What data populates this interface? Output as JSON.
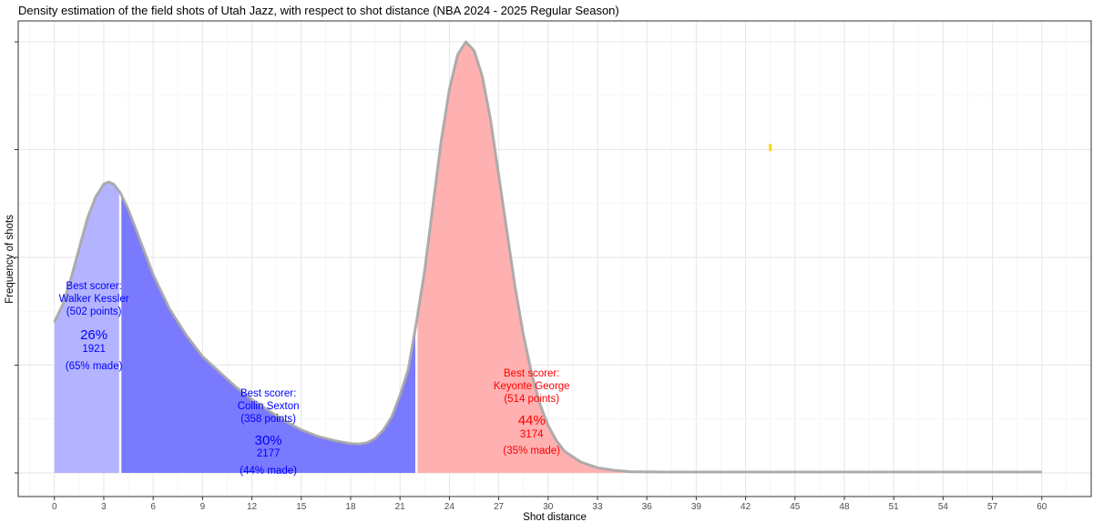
{
  "chart_data": {
    "type": "area",
    "title": "Density estimation of the field shots of Utah Jazz, with respect to shot distance (NBA 2024 - 2025 Regular Season)",
    "xlabel": "Shot distance",
    "ylabel": "Frequency of shots",
    "xlim": [
      -2.2,
      63
    ],
    "x_ticks": [
      0,
      3,
      6,
      9,
      12,
      15,
      18,
      21,
      24,
      27,
      30,
      33,
      36,
      39,
      42,
      45,
      48,
      51,
      54,
      57,
      60
    ],
    "ylim": [
      0,
      1
    ],
    "grid": true,
    "legend": "none",
    "zones": [
      {
        "name": "zone-1",
        "x_range": [
          0,
          4
        ],
        "color": "#b3b3ff",
        "text_color": "#0000ff",
        "label_x": 2.4,
        "best_scorer_heading": "Best scorer:",
        "best_scorer_name": "Walker Kessler",
        "best_scorer_points": "(502 points)",
        "share": "26%",
        "shots": "1921",
        "made": "(65% made)"
      },
      {
        "name": "zone-2",
        "x_range": [
          4,
          22
        ],
        "color": "#7a7aff",
        "text_color": "#0000ff",
        "label_x": 13,
        "best_scorer_heading": "Best scorer:",
        "best_scorer_name": "Collin Sexton",
        "best_scorer_points": "(358 points)",
        "share": "30%",
        "shots": "2177",
        "made": "(44% made)"
      },
      {
        "name": "zone-3",
        "x_range": [
          22,
          60
        ],
        "color": "#ffb0b0",
        "text_color": "#ff0000",
        "label_x": 29,
        "best_scorer_heading": "Best scorer:",
        "best_scorer_name": "Keyonte George",
        "best_scorer_points": "(514 points)",
        "share": "44%",
        "shots": "3174",
        "made": "(35% made)"
      }
    ],
    "curve_points": [
      {
        "x": 0,
        "y": 0.35
      },
      {
        "x": 0.5,
        "y": 0.39
      },
      {
        "x": 1,
        "y": 0.45
      },
      {
        "x": 1.5,
        "y": 0.52
      },
      {
        "x": 2,
        "y": 0.59
      },
      {
        "x": 2.5,
        "y": 0.64
      },
      {
        "x": 3,
        "y": 0.67
      },
      {
        "x": 3.3,
        "y": 0.675
      },
      {
        "x": 3.6,
        "y": 0.67
      },
      {
        "x": 4,
        "y": 0.65
      },
      {
        "x": 4.5,
        "y": 0.61
      },
      {
        "x": 5,
        "y": 0.56
      },
      {
        "x": 6,
        "y": 0.46
      },
      {
        "x": 7,
        "y": 0.38
      },
      {
        "x": 8,
        "y": 0.32
      },
      {
        "x": 9,
        "y": 0.27
      },
      {
        "x": 10,
        "y": 0.235
      },
      {
        "x": 11,
        "y": 0.2
      },
      {
        "x": 12,
        "y": 0.17
      },
      {
        "x": 13,
        "y": 0.145
      },
      {
        "x": 14,
        "y": 0.12
      },
      {
        "x": 15,
        "y": 0.1
      },
      {
        "x": 16,
        "y": 0.085
      },
      {
        "x": 17,
        "y": 0.075
      },
      {
        "x": 18,
        "y": 0.068
      },
      {
        "x": 18.5,
        "y": 0.067
      },
      {
        "x": 19,
        "y": 0.07
      },
      {
        "x": 19.5,
        "y": 0.08
      },
      {
        "x": 20,
        "y": 0.1
      },
      {
        "x": 20.5,
        "y": 0.13
      },
      {
        "x": 21,
        "y": 0.18
      },
      {
        "x": 21.5,
        "y": 0.24
      },
      {
        "x": 22,
        "y": 0.35
      },
      {
        "x": 22.5,
        "y": 0.47
      },
      {
        "x": 23,
        "y": 0.62
      },
      {
        "x": 23.5,
        "y": 0.77
      },
      {
        "x": 24,
        "y": 0.89
      },
      {
        "x": 24.5,
        "y": 0.97
      },
      {
        "x": 25,
        "y": 1.0
      },
      {
        "x": 25.5,
        "y": 0.98
      },
      {
        "x": 26,
        "y": 0.92
      },
      {
        "x": 26.5,
        "y": 0.82
      },
      {
        "x": 27,
        "y": 0.69
      },
      {
        "x": 27.5,
        "y": 0.56
      },
      {
        "x": 28,
        "y": 0.43
      },
      {
        "x": 28.5,
        "y": 0.32
      },
      {
        "x": 29,
        "y": 0.23
      },
      {
        "x": 29.5,
        "y": 0.16
      },
      {
        "x": 30,
        "y": 0.11
      },
      {
        "x": 30.5,
        "y": 0.075
      },
      {
        "x": 31,
        "y": 0.05
      },
      {
        "x": 32,
        "y": 0.025
      },
      {
        "x": 33,
        "y": 0.012
      },
      {
        "x": 34,
        "y": 0.006
      },
      {
        "x": 35,
        "y": 0.003
      },
      {
        "x": 37,
        "y": 0.002
      },
      {
        "x": 40,
        "y": 0.002
      },
      {
        "x": 45,
        "y": 0.002
      },
      {
        "x": 50,
        "y": 0.002
      },
      {
        "x": 55,
        "y": 0.002
      },
      {
        "x": 60,
        "y": 0.002
      }
    ],
    "curve_stroke_color": "#a6a6a6",
    "divider_color": "#ffffff",
    "stray_mark": {
      "x": 43.5,
      "y": 0.755,
      "color": "#ffd700"
    }
  }
}
